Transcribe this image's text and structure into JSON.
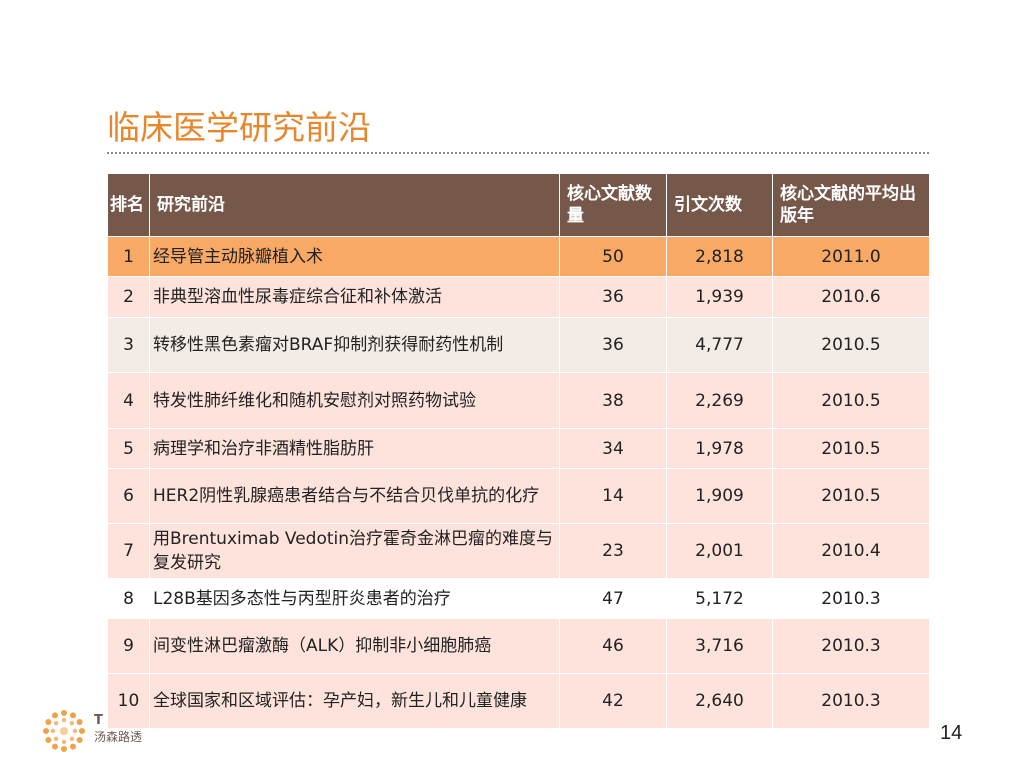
{
  "slide": {
    "title": "临床医学研究前沿",
    "page_number": "14",
    "accent_color": "#e8862c",
    "header_color": "#76584a",
    "highlight_color": "#f9a966"
  },
  "table": {
    "headers": {
      "rank": "排名",
      "topic": "研究前沿",
      "core_papers": "核心文献数量",
      "citations": "引文次数",
      "avg_year": "核心文献的平均出版年"
    },
    "rows": [
      {
        "rank": "1",
        "topic": "经导管主动脉瓣植入术",
        "core_papers": "50",
        "citations": "2,818",
        "avg_year": "2011.0"
      },
      {
        "rank": "2",
        "topic": "非典型溶血性尿毒症综合征和补体激活",
        "core_papers": "36",
        "citations": "1,939",
        "avg_year": "2010.6"
      },
      {
        "rank": "3",
        "topic": "转移性黑色素瘤对BRAF抑制剂获得耐药性机制",
        "core_papers": "36",
        "citations": "4,777",
        "avg_year": "2010.5"
      },
      {
        "rank": "4",
        "topic": "特发性肺纤维化和随机安慰剂对照药物试验",
        "core_papers": "38",
        "citations": "2,269",
        "avg_year": "2010.5"
      },
      {
        "rank": "5",
        "topic": "病理学和治疗非酒精性脂肪肝",
        "core_papers": "34",
        "citations": "1,978",
        "avg_year": "2010.5"
      },
      {
        "rank": "6",
        "topic": "HER2阴性乳腺癌患者结合与不结合贝伐单抗的化疗",
        "core_papers": "14",
        "citations": "1,909",
        "avg_year": "2010.5"
      },
      {
        "rank": "7",
        "topic": "用Brentuximab Vedotin治疗霍奇金淋巴瘤的难度与复发研究",
        "core_papers": "23",
        "citations": "2,001",
        "avg_year": "2010.4"
      },
      {
        "rank": "8",
        "topic": "L28B基因多态性与丙型肝炎患者的治疗",
        "core_papers": "47",
        "citations": "5,172",
        "avg_year": "2010.3"
      },
      {
        "rank": "9",
        "topic": "间变性淋巴瘤激酶（ALK）抑制非小细胞肺癌",
        "core_papers": "46",
        "citations": "3,716",
        "avg_year": "2010.3"
      },
      {
        "rank": "10",
        "topic": "全球国家和区域评估：孕产妇，新生儿和儿童健康",
        "core_papers": "42",
        "citations": "2,640",
        "avg_year": "2010.3"
      }
    ]
  },
  "footer": {
    "logo_icon": "thomson-reuters-logo",
    "logo_text_top": "T",
    "logo_text": "汤森路透"
  }
}
